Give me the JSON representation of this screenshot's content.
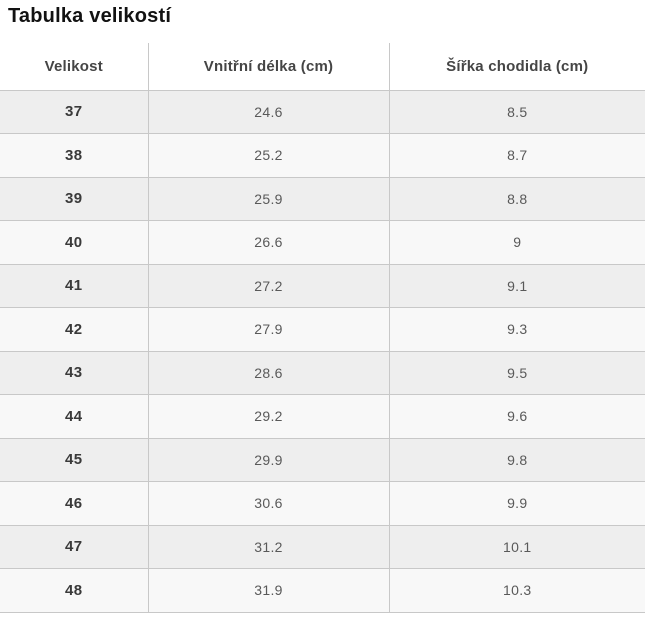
{
  "title": "Tabulka velikostí",
  "table": {
    "columns": [
      "Velikost",
      "Vnitřní délka (cm)",
      "Šířka chodidla (cm)"
    ],
    "rows": [
      {
        "size": "37",
        "inner_length_cm": "24.6",
        "foot_width_cm": "8.5"
      },
      {
        "size": "38",
        "inner_length_cm": "25.2",
        "foot_width_cm": "8.7"
      },
      {
        "size": "39",
        "inner_length_cm": "25.9",
        "foot_width_cm": "8.8"
      },
      {
        "size": "40",
        "inner_length_cm": "26.6",
        "foot_width_cm": "9"
      },
      {
        "size": "41",
        "inner_length_cm": "27.2",
        "foot_width_cm": "9.1"
      },
      {
        "size": "42",
        "inner_length_cm": "27.9",
        "foot_width_cm": "9.3"
      },
      {
        "size": "43",
        "inner_length_cm": "28.6",
        "foot_width_cm": "9.5"
      },
      {
        "size": "44",
        "inner_length_cm": "29.2",
        "foot_width_cm": "9.6"
      },
      {
        "size": "45",
        "inner_length_cm": "29.9",
        "foot_width_cm": "9.8"
      },
      {
        "size": "46",
        "inner_length_cm": "30.6",
        "foot_width_cm": "9.9"
      },
      {
        "size": "47",
        "inner_length_cm": "31.2",
        "foot_width_cm": "10.1"
      },
      {
        "size": "48",
        "inner_length_cm": "31.9",
        "foot_width_cm": "10.3"
      }
    ]
  },
  "colors": {
    "page_background": "#ffffff",
    "row_odd_background": "#eeeeee",
    "row_even_background": "#f8f8f8",
    "border": "#c8c8c8",
    "title_text": "#121212",
    "header_text": "#454545",
    "size_text": "#3a3a3a",
    "value_text": "#595959"
  }
}
